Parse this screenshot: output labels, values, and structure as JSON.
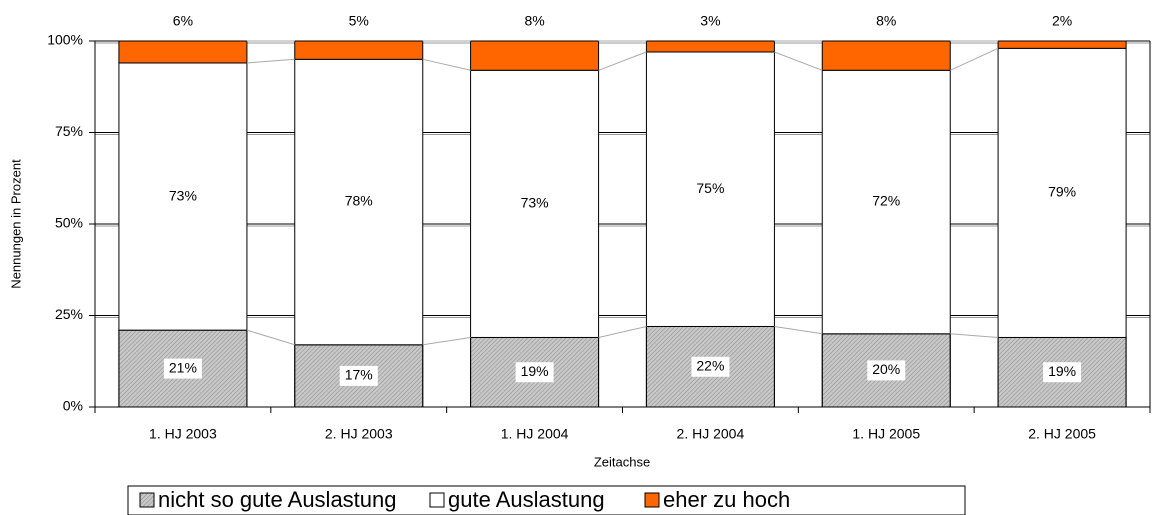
{
  "chart_data": {
    "type": "stacked_bar",
    "y_axis_label": "Nennungen in Prozent",
    "x_axis_label": "Zeitachse",
    "categories": [
      "1. HJ 2003",
      "2. HJ 2003",
      "1. HJ 2004",
      "2. HJ 2004",
      "1. HJ 2005",
      "2. HJ 2005"
    ],
    "series": [
      {
        "name": "nicht so gute Auslastung",
        "color": "#c8c8c8",
        "values": [
          21,
          17,
          19,
          22,
          20,
          19
        ],
        "value_labels": [
          "21%",
          "17%",
          "19%",
          "22%",
          "20%",
          "19%"
        ]
      },
      {
        "name": "gute Auslastung",
        "color": "#ffffff",
        "values": [
          73,
          78,
          73,
          75,
          72,
          79
        ],
        "value_labels": [
          "73%",
          "78%",
          "73%",
          "75%",
          "72%",
          "79%"
        ]
      },
      {
        "name": "eher zu hoch",
        "color": "#ff6600",
        "values": [
          6,
          5,
          8,
          3,
          8,
          2
        ],
        "value_labels": [
          "6%",
          "5%",
          "8%",
          "3%",
          "8%",
          "2%"
        ]
      }
    ],
    "ylim": [
      0,
      100
    ],
    "yticks": [
      {
        "value": 0,
        "label": "0%"
      },
      {
        "value": 25,
        "label": "25%"
      },
      {
        "value": 50,
        "label": "50%"
      },
      {
        "value": 75,
        "label": "75%"
      },
      {
        "value": 100,
        "label": "100%"
      }
    ],
    "grid": true,
    "legend": "bottom"
  }
}
